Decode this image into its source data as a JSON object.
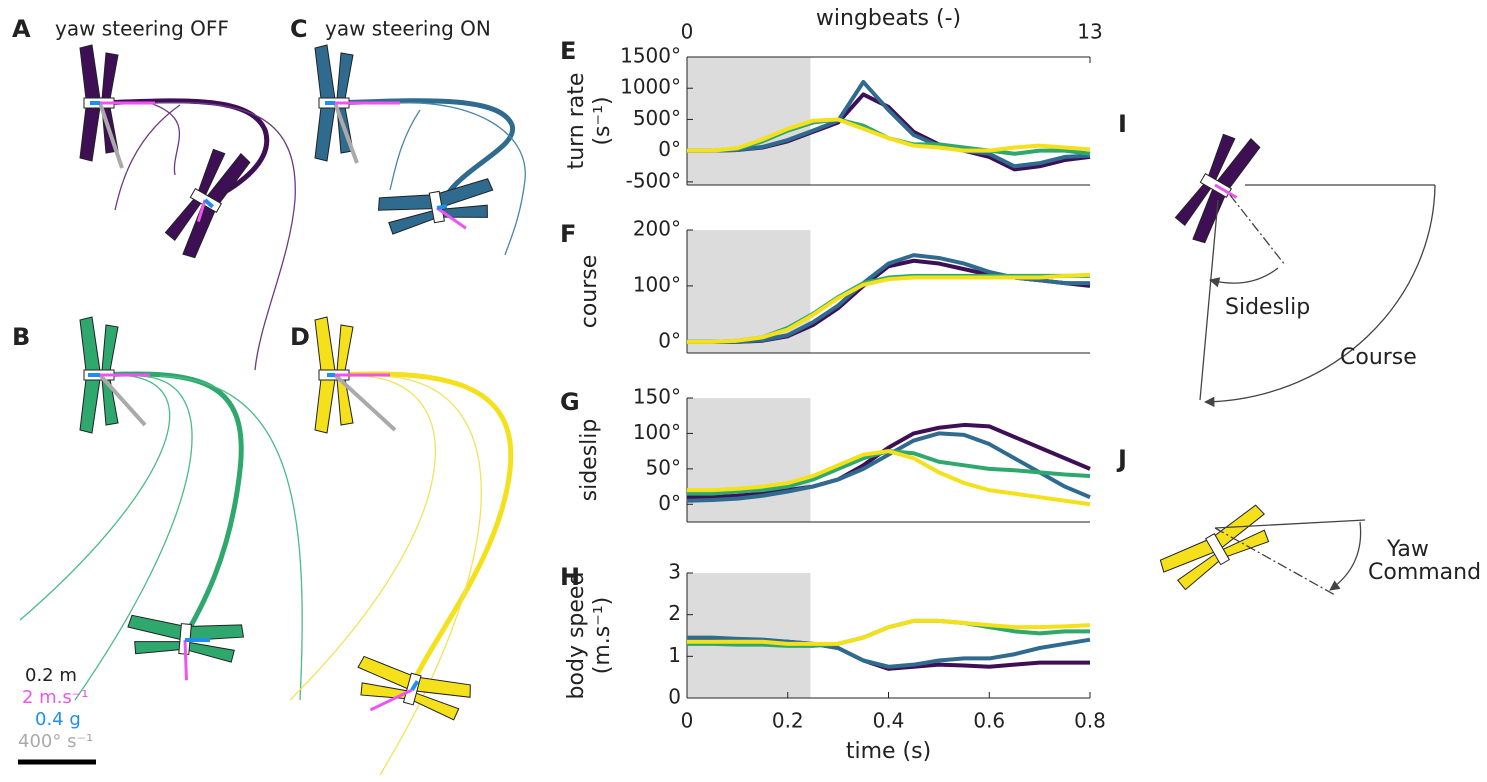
{
  "panels": [
    {
      "letter": "A",
      "title": "yaw steering OFF"
    },
    {
      "letter": "B"
    },
    {
      "letter": "C",
      "title": "yaw steering ON"
    },
    {
      "letter": "D"
    }
  ],
  "scale_bar": [
    "0.2 m",
    "2 m.s⁻¹",
    "0.4 g",
    "400° s⁻¹"
  ],
  "panel_I": {
    "letter": "I",
    "labels": [
      "Sideslip",
      "Course"
    ]
  },
  "panel_J": {
    "letter": "J",
    "labels": [
      "Yaw",
      "Command"
    ]
  },
  "chart_data": [
    {
      "type": "line",
      "label": "E",
      "ylabel": [
        "turn rate",
        "(s⁻¹)"
      ],
      "x2label": "wingbeats (-)",
      "x2lim": [
        0,
        13
      ],
      "x2ticks": [
        0,
        13
      ],
      "x": [
        0,
        0.05,
        0.1,
        0.15,
        0.2,
        0.25,
        0.3,
        0.35,
        0.4,
        0.45,
        0.5,
        0.55,
        0.6,
        0.65,
        0.7,
        0.75,
        0.8
      ],
      "xlim": [
        0,
        0.8
      ],
      "shaded_xrange": [
        0,
        0.245
      ],
      "ylim": [
        -550,
        1500
      ],
      "yticks": [
        {
          "value": -500,
          "label": "-500°"
        },
        {
          "value": 0,
          "label": "0°"
        },
        {
          "value": 500,
          "label": "500°"
        },
        {
          "value": 1000,
          "label": "1000°"
        },
        {
          "value": 1500,
          "label": "1500°"
        }
      ],
      "series": [
        {
          "color": "#3f0f55",
          "values": [
            0,
            0,
            10,
            50,
            150,
            300,
            450,
            900,
            700,
            300,
            100,
            0,
            -100,
            -300,
            -250,
            -150,
            -100
          ]
        },
        {
          "color": "#2f6b8e",
          "values": [
            0,
            0,
            10,
            60,
            170,
            320,
            480,
            1100,
            650,
            250,
            80,
            0,
            -50,
            -250,
            -200,
            -100,
            -80
          ]
        },
        {
          "color": "#2fa86e",
          "values": [
            0,
            0,
            30,
            150,
            320,
            450,
            500,
            400,
            200,
            100,
            100,
            50,
            0,
            -50,
            0,
            0,
            -50
          ]
        },
        {
          "color": "#f5e01c",
          "values": [
            0,
            0,
            40,
            180,
            350,
            480,
            500,
            350,
            200,
            80,
            50,
            0,
            0,
            50,
            80,
            50,
            20
          ]
        }
      ]
    },
    {
      "type": "line",
      "label": "F",
      "ylabel": [
        "course"
      ],
      "x": [
        0,
        0.05,
        0.1,
        0.15,
        0.2,
        0.25,
        0.3,
        0.35,
        0.4,
        0.45,
        0.5,
        0.55,
        0.6,
        0.65,
        0.7,
        0.75,
        0.8
      ],
      "xlim": [
        0,
        0.8
      ],
      "shaded_xrange": [
        0,
        0.245
      ],
      "ylim": [
        -20,
        200
      ],
      "yticks": [
        {
          "value": 0,
          "label": "0°"
        },
        {
          "value": 100,
          "label": "100°"
        },
        {
          "value": 200,
          "label": "200°"
        }
      ],
      "series": [
        {
          "color": "#3f0f55",
          "values": [
            0,
            0,
            0,
            2,
            10,
            30,
            60,
            100,
            135,
            145,
            140,
            130,
            120,
            115,
            110,
            105,
            100
          ]
        },
        {
          "color": "#2f6b8e",
          "values": [
            0,
            0,
            0,
            3,
            12,
            35,
            65,
            105,
            140,
            155,
            150,
            140,
            125,
            115,
            110,
            105,
            105
          ]
        },
        {
          "color": "#2fa86e",
          "values": [
            0,
            0,
            2,
            8,
            25,
            50,
            80,
            105,
            115,
            118,
            118,
            118,
            118,
            118,
            118,
            118,
            118
          ]
        },
        {
          "color": "#f5e01c",
          "values": [
            0,
            0,
            2,
            8,
            22,
            48,
            78,
            102,
            112,
            115,
            115,
            115,
            115,
            115,
            115,
            118,
            120
          ]
        }
      ]
    },
    {
      "type": "line",
      "label": "G",
      "ylabel": [
        "sideslip"
      ],
      "x": [
        0,
        0.05,
        0.1,
        0.15,
        0.2,
        0.25,
        0.3,
        0.35,
        0.4,
        0.45,
        0.5,
        0.55,
        0.6,
        0.65,
        0.7,
        0.75,
        0.8
      ],
      "xlim": [
        0,
        0.8
      ],
      "shaded_xrange": [
        0,
        0.245
      ],
      "ylim": [
        -25,
        150
      ],
      "yticks": [
        {
          "value": 0,
          "label": "0°"
        },
        {
          "value": 50,
          "label": "50°"
        },
        {
          "value": 100,
          "label": "100°"
        },
        {
          "value": 150,
          "label": "150°"
        }
      ],
      "series": [
        {
          "color": "#3f0f55",
          "values": [
            10,
            10,
            12,
            15,
            20,
            25,
            35,
            55,
            80,
            100,
            108,
            112,
            110,
            95,
            80,
            65,
            50
          ]
        },
        {
          "color": "#2f6b8e",
          "values": [
            5,
            6,
            8,
            12,
            18,
            25,
            35,
            50,
            70,
            90,
            100,
            98,
            85,
            65,
            45,
            25,
            10
          ]
        },
        {
          "color": "#2fa86e",
          "values": [
            15,
            15,
            18,
            20,
            25,
            35,
            50,
            65,
            75,
            72,
            60,
            55,
            50,
            48,
            45,
            42,
            40
          ]
        },
        {
          "color": "#f5e01c",
          "values": [
            20,
            20,
            22,
            25,
            30,
            40,
            55,
            70,
            75,
            65,
            45,
            30,
            20,
            15,
            10,
            5,
            0
          ]
        }
      ]
    },
    {
      "type": "line",
      "label": "H",
      "ylabel": [
        "body speed",
        "(m.s⁻¹)"
      ],
      "xlabel": "time (s)",
      "x": [
        0,
        0.05,
        0.1,
        0.15,
        0.2,
        0.25,
        0.3,
        0.35,
        0.4,
        0.45,
        0.5,
        0.55,
        0.6,
        0.65,
        0.7,
        0.75,
        0.8
      ],
      "xlim": [
        0,
        0.8
      ],
      "xticks": [
        0,
        0.2,
        0.4,
        0.6,
        0.8
      ],
      "shaded_xrange": [
        0,
        0.245
      ],
      "ylim": [
        0,
        3
      ],
      "yticks": [
        0,
        1,
        2,
        3
      ],
      "series": [
        {
          "color": "#3f0f55",
          "values": [
            1.4,
            1.42,
            1.4,
            1.38,
            1.35,
            1.3,
            1.2,
            0.9,
            0.7,
            0.75,
            0.8,
            0.78,
            0.75,
            0.8,
            0.85,
            0.85,
            0.85
          ]
        },
        {
          "color": "#2f6b8e",
          "values": [
            1.45,
            1.45,
            1.42,
            1.4,
            1.35,
            1.3,
            1.2,
            0.9,
            0.75,
            0.8,
            0.9,
            0.95,
            0.95,
            1.05,
            1.2,
            1.3,
            1.4
          ]
        },
        {
          "color": "#2fa86e",
          "values": [
            1.3,
            1.3,
            1.28,
            1.28,
            1.25,
            1.25,
            1.3,
            1.45,
            1.7,
            1.85,
            1.85,
            1.8,
            1.7,
            1.6,
            1.55,
            1.6,
            1.6
          ]
        },
        {
          "color": "#f5e01c",
          "values": [
            1.35,
            1.35,
            1.35,
            1.35,
            1.3,
            1.3,
            1.3,
            1.45,
            1.7,
            1.85,
            1.85,
            1.8,
            1.75,
            1.7,
            1.7,
            1.72,
            1.75
          ]
        }
      ]
    }
  ]
}
